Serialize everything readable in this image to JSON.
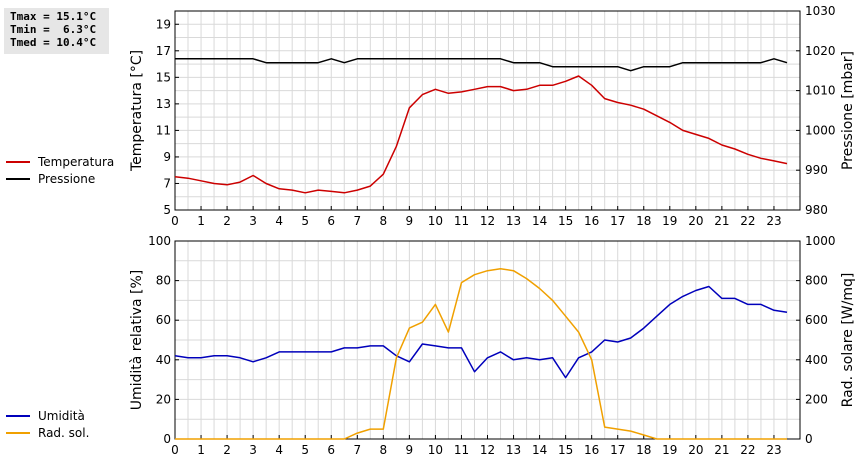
{
  "stats": {
    "tmax": "Tmax = 15.1°C",
    "tmin": "Tmin =  6.3°C",
    "tmed": "Tmed = 10.4°C"
  },
  "colors": {
    "temperature": "#cc0000",
    "pressure": "#000000",
    "humidity": "#0000bb",
    "radiation": "#f0a000",
    "grid": "#d9d9d9"
  },
  "chart_data": [
    {
      "type": "line",
      "xlim": [
        0,
        24
      ],
      "xticks": [
        "0",
        "1",
        "2",
        "3",
        "4",
        "5",
        "6",
        "7",
        "8",
        "9",
        "10",
        "11",
        "12",
        "13",
        "14",
        "15",
        "16",
        "17",
        "18",
        "19",
        "20",
        "21",
        "22",
        "23"
      ],
      "ylabel": "Temperatura [°C]",
      "ylim": [
        5,
        20
      ],
      "yticks": [
        "5",
        "7",
        "9",
        "11",
        "13",
        "15",
        "17",
        "19"
      ],
      "y2label": "Pressione [mbar]",
      "y2lim": [
        980,
        1030
      ],
      "y2ticks": [
        "980",
        "990",
        "1000",
        "1010",
        "1020",
        "1030"
      ],
      "grid": true,
      "series": [
        {
          "name": "Temperatura",
          "axis": "left",
          "x": [
            0,
            0.5,
            1,
            1.5,
            2,
            2.5,
            3,
            3.5,
            4,
            4.5,
            5,
            5.5,
            6,
            6.5,
            7,
            7.5,
            8,
            8.5,
            9,
            9.5,
            10,
            10.5,
            11,
            11.5,
            12,
            12.5,
            13,
            13.5,
            14,
            14.5,
            15,
            15.5,
            16,
            16.5,
            17,
            17.5,
            18,
            18.5,
            19,
            19.5,
            20,
            20.5,
            21,
            21.5,
            22,
            22.5,
            23,
            23.5
          ],
          "values": [
            7.5,
            7.4,
            7.2,
            7.0,
            6.9,
            7.1,
            7.6,
            7.0,
            6.6,
            6.5,
            6.3,
            6.5,
            6.4,
            6.3,
            6.5,
            6.8,
            7.7,
            9.8,
            12.7,
            13.7,
            14.1,
            13.8,
            13.9,
            14.1,
            14.3,
            14.3,
            14.0,
            14.1,
            14.4,
            14.4,
            14.7,
            15.1,
            14.4,
            13.4,
            13.1,
            12.9,
            12.6,
            12.1,
            11.6,
            11.0,
            10.7,
            10.4,
            9.9,
            9.6,
            9.2,
            8.9,
            8.7,
            8.5
          ]
        },
        {
          "name": "Pressione",
          "axis": "right",
          "x": [
            0,
            0.5,
            1,
            1.5,
            2,
            2.5,
            3,
            3.5,
            4,
            4.5,
            5,
            5.5,
            6,
            6.5,
            7,
            7.5,
            8,
            8.5,
            9,
            9.5,
            10,
            10.5,
            11,
            11.5,
            12,
            12.5,
            13,
            13.5,
            14,
            14.5,
            15,
            15.5,
            16,
            16.5,
            17,
            17.5,
            18,
            18.5,
            19,
            19.5,
            20,
            20.5,
            21,
            21.5,
            22,
            22.5,
            23,
            23.5
          ],
          "values": [
            1018,
            1018,
            1018,
            1018,
            1018,
            1018,
            1018,
            1017,
            1017,
            1017,
            1017,
            1017,
            1018,
            1017,
            1018,
            1018,
            1018,
            1018,
            1018,
            1018,
            1018,
            1018,
            1018,
            1018,
            1018,
            1018,
            1017,
            1017,
            1017,
            1016,
            1016,
            1016,
            1016,
            1016,
            1016,
            1015,
            1016,
            1016,
            1016,
            1017,
            1017,
            1017,
            1017,
            1017,
            1017,
            1017,
            1018,
            1017
          ]
        }
      ]
    },
    {
      "type": "line",
      "xlim": [
        0,
        24
      ],
      "xticks": [
        "0",
        "1",
        "2",
        "3",
        "4",
        "5",
        "6",
        "7",
        "8",
        "9",
        "10",
        "11",
        "12",
        "13",
        "14",
        "15",
        "16",
        "17",
        "18",
        "19",
        "20",
        "21",
        "22",
        "23"
      ],
      "ylabel": "Umidità relativa [%]",
      "ylim": [
        0,
        100
      ],
      "yticks": [
        "0",
        "20",
        "40",
        "60",
        "80",
        "100"
      ],
      "y2label": "Rad. solare [W/mq]",
      "y2lim": [
        0,
        1000
      ],
      "y2ticks": [
        "0",
        "200",
        "400",
        "600",
        "800",
        "1000"
      ],
      "grid": true,
      "series": [
        {
          "name": "Umidità",
          "axis": "left",
          "x": [
            0,
            0.5,
            1,
            1.5,
            2,
            2.5,
            3,
            3.5,
            4,
            4.5,
            5,
            5.5,
            6,
            6.5,
            7,
            7.5,
            8,
            8.5,
            9,
            9.5,
            10,
            10.5,
            11,
            11.5,
            12,
            12.5,
            13,
            13.5,
            14,
            14.5,
            15,
            15.5,
            16,
            16.5,
            17,
            17.5,
            18,
            18.5,
            19,
            19.5,
            20,
            20.5,
            21,
            21.5,
            22,
            22.5,
            23,
            23.5
          ],
          "values": [
            42,
            41,
            41,
            42,
            42,
            41,
            39,
            41,
            44,
            44,
            44,
            44,
            44,
            46,
            46,
            47,
            47,
            42,
            39,
            48,
            47,
            46,
            46,
            34,
            41,
            44,
            40,
            41,
            40,
            41,
            31,
            41,
            44,
            50,
            49,
            51,
            56,
            62,
            68,
            72,
            75,
            77,
            71,
            71,
            68,
            68,
            65,
            64
          ]
        },
        {
          "name": "Rad. sol.",
          "axis": "right",
          "x": [
            0,
            1,
            2,
            3,
            4,
            5,
            6,
            6.5,
            7,
            7.5,
            8,
            8.5,
            9,
            9.5,
            10,
            10.5,
            11,
            11.5,
            12,
            12.5,
            13,
            13.5,
            14,
            14.5,
            15,
            15.5,
            16,
            16.5,
            17,
            17.5,
            18,
            18.5,
            19,
            20,
            21,
            22,
            23,
            23.5
          ],
          "values": [
            0,
            0,
            0,
            0,
            0,
            0,
            0,
            0,
            30,
            50,
            50,
            410,
            560,
            590,
            680,
            540,
            790,
            830,
            850,
            860,
            850,
            810,
            760,
            700,
            620,
            540,
            400,
            60,
            50,
            40,
            20,
            0,
            0,
            0,
            0,
            0,
            0,
            0
          ]
        }
      ]
    }
  ]
}
